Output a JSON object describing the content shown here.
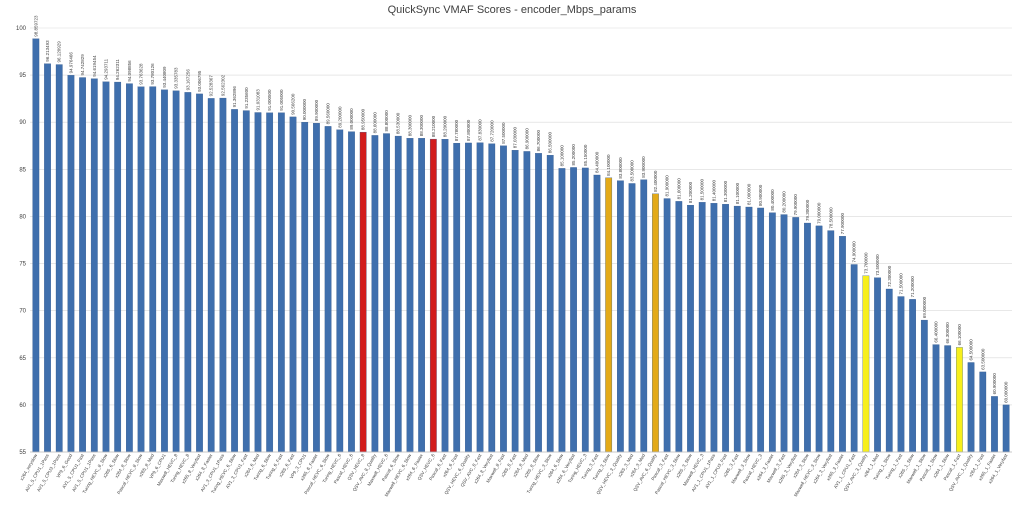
{
  "colors": {
    "default": "#3f6fad",
    "red": "#d21c1c",
    "orange": "#e3aa18",
    "yellow": "#f7ef1c"
  },
  "chart_data": {
    "type": "bar",
    "title": "QuickSync VMAF Scores - encoder_Mbps_params",
    "ylim": [
      55,
      100
    ],
    "yticks": [
      55,
      60,
      65,
      70,
      75,
      80,
      85,
      90,
      95,
      100
    ],
    "grid": true,
    "legend": "none",
    "categories": [
      "x264_veryslow",
      "AV1_5_CPU1_1Pass",
      "AV1_5_CPU3_1Pass",
      "VP9_6_Good",
      "AV1_5_CPU1_Fast",
      "AV1_5_CPU1_1Pass",
      "Turing_HEVC_8_Slow",
      "x265_6_Slow",
      "x264_8_Slow",
      "Pascal_HEVC_8_Slow",
      "x265_8_Med",
      "VP9_6_CPU1",
      "Maxwell_HEVC_8",
      "Turing_HEVC_8",
      "x265_8_Veryfast",
      "x264_8_Faster",
      "AV1_3_CPU1_1Pass",
      "Turing_HEVC_6_Slow",
      "AV1_3_CPU1_Fast",
      "x264_6_Med",
      "Turing_6_Slow",
      "Turing_6_Fast",
      "x265_6_Fast",
      "VP9_3_CPU1",
      "x265_6_Faster",
      "Pascal_HEVC_6_Slow",
      "Turing_HEVC_6",
      "Pascal_HEVC_6",
      "QSV_HEVC_8",
      "QSV_AVC_8_Quality",
      "Maxwell_HEVC_6",
      "Pascal_6_Slow",
      "Maxwell_HEVC_6_Slow",
      "x264_6_Faster",
      "QSV_HEVC_6",
      "Pascal_6_Fast",
      "x264_6_Fast",
      "QSV_HEVC_6_Quality",
      "QSV_AVC_8_Fast",
      "x264_8_Veryfast",
      "Maxwell_8_Fast",
      "x265_8_Fast",
      "x264_8_Med",
      "x265_8_Slow",
      "Turing_HEVC_3_Slow",
      "x264_6_Slow",
      "x264_6_Veryfast",
      "Turing_HEVC_3",
      "Turing_3_Fast",
      "Turing_3_Slow",
      "QSV_HEVC_3_Quality",
      "x265_3_Med",
      "x264_3_Med",
      "QSV_AVC_6_Quality",
      "Pascal_3_Fast",
      "Pascal_HEVC_3_Slow",
      "x265_3_Slow",
      "Maxwell_HEVC_3",
      "AV1_1_CPU1_1Pass",
      "AV1_1_CPU3_Fast",
      "x265_3_Fast",
      "Maxwell_3_Slow",
      "Pascal_HEVC_3",
      "x264_3_Faster",
      "Maxwell_3_Fast",
      "x265_3_Veryfast",
      "x264_3_Slow",
      "Maxwell_HEVC_3_Slow",
      "x264_3_Veryfast",
      "x265_3_Faster",
      "AV1_1_CPU1_Fast",
      "QSV_AVC_3_Quality",
      "x264_1_Med",
      "Turing_1_Slow",
      "Turing_1_Fast",
      "x265_1_Slow",
      "Maxwell_1_Slow",
      "Pascal_1_Slow",
      "x264_1_Slow",
      "Pascal_1_Fast",
      "QSV_AVC_1_Quality",
      "x264_1_Fast",
      "x265_1_Faster",
      "x264_1_Veryfast"
    ],
    "values": [
      98.859723,
      96.213493,
      96.120929,
      94.976466,
      94.742829,
      94.619454,
      94.293711,
      94.262311,
      94.098856,
      93.763628,
      93.780126,
      93.440809,
      93.335783,
      93.167256,
      93.006795,
      92.528367,
      92.562302,
      91.362896,
      91.2356,
      91.031083,
      91.0005,
      91.005,
      90.5662,
      90.0,
      89.9,
      89.56,
      89.2,
      89.0,
      88.95,
      88.6,
      88.8,
      88.53,
      88.3,
      88.3,
      88.21,
      88.2,
      87.78,
      87.8,
      87.83,
      87.72,
      87.5,
      87.03,
      86.9,
      86.7,
      86.5,
      85.1,
      85.2,
      85.15,
      84.4,
      84.1,
      83.8,
      83.5,
      83.9,
      82.4,
      81.9,
      81.6,
      81.2,
      81.5,
      81.4,
      81.3,
      81.1,
      81.0,
      80.9,
      80.4,
      80.2,
      79.9,
      79.3,
      79.0,
      78.5,
      77.9,
      74.9,
      73.7,
      73.5,
      72.3,
      71.5,
      71.2,
      69.0,
      66.4,
      66.3,
      66.1,
      64.5,
      63.5,
      60.9,
      60.0
    ],
    "value_labels": [
      "98.859723",
      "96.213493",
      "96.120929",
      "94.976466",
      "94.742829",
      "94.619454",
      "94.293711",
      "94.262311",
      "94.098856",
      "93.763628",
      "93.780126",
      "93.440809",
      "93.335783",
      "93.167256",
      "93.006795",
      "92.528367",
      "92.562302",
      "91.362896",
      "91.235600",
      "91.031083",
      "91.000500",
      "91.005000",
      "90.566200",
      "90.000000",
      "89.900000",
      "89.560000",
      "89.200000",
      "89.000000",
      "88.950000",
      "88.600000",
      "88.800000",
      "88.530000",
      "88.300000",
      "88.300000",
      "88.210000",
      "88.200000",
      "87.780000",
      "87.800000",
      "87.830000",
      "87.720000",
      "87.500000",
      "87.030000",
      "86.900000",
      "86.700000",
      "86.500000",
      "85.100000",
      "85.200000",
      "85.150000",
      "84.400000",
      "84.100000",
      "83.800000",
      "83.500000",
      "83.900000",
      "82.400000",
      "81.900000",
      "81.600000",
      "81.200000",
      "81.500000",
      "81.400000",
      "81.300000",
      "81.100000",
      "81.000000",
      "80.900000",
      "80.400000",
      "80.200000",
      "79.900000",
      "79.300000",
      "79.000000",
      "78.500000",
      "77.900000",
      "74.900000",
      "73.700000",
      "73.500000",
      "72.300000",
      "71.500000",
      "71.200000",
      "69.000000",
      "66.400000",
      "66.300000",
      "66.100000",
      "64.500000",
      "63.500000",
      "60.900000",
      "60.000000"
    ],
    "highlight": {
      "red": [
        28,
        34
      ],
      "orange": [
        49,
        53
      ],
      "yellow": [
        71,
        79
      ]
    }
  }
}
